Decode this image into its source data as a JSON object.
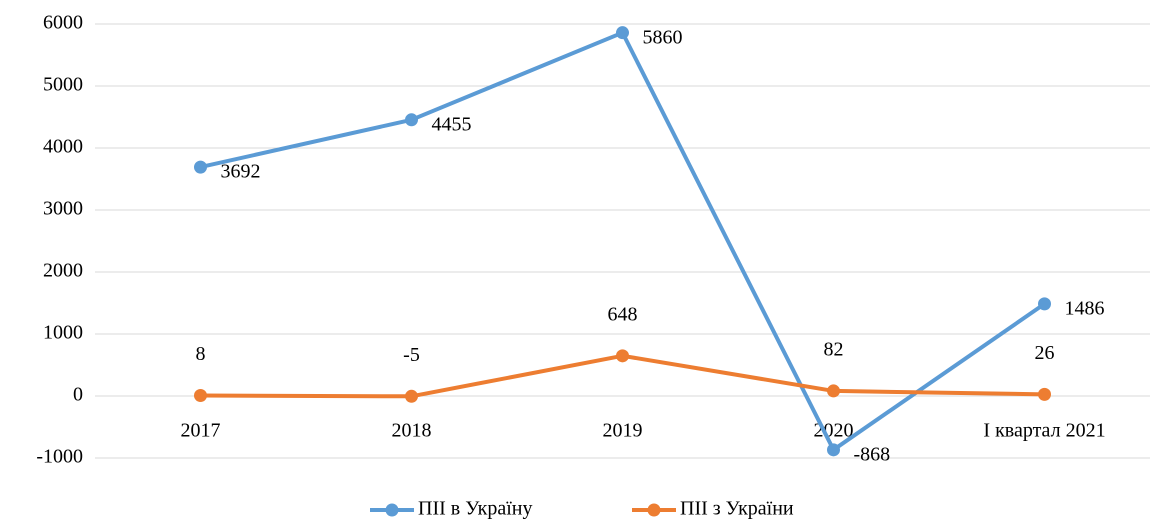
{
  "chart_data": {
    "type": "line",
    "categories": [
      "2017",
      "2018",
      "2019",
      "2020",
      "I квартал 2021"
    ],
    "series": [
      {
        "name": "ПІІ в Україну",
        "color": "#5b9bd5",
        "values": [
          3692,
          4455,
          5860,
          -868,
          1486
        ]
      },
      {
        "name": "ПІІ з України",
        "color": "#ed7d31",
        "values": [
          8,
          -5,
          648,
          82,
          26
        ]
      }
    ],
    "ylim": [
      -1000,
      6000
    ],
    "yticks": [
      -1000,
      0,
      1000,
      2000,
      3000,
      4000,
      5000,
      6000
    ],
    "grid": true,
    "legend": "bottom"
  }
}
